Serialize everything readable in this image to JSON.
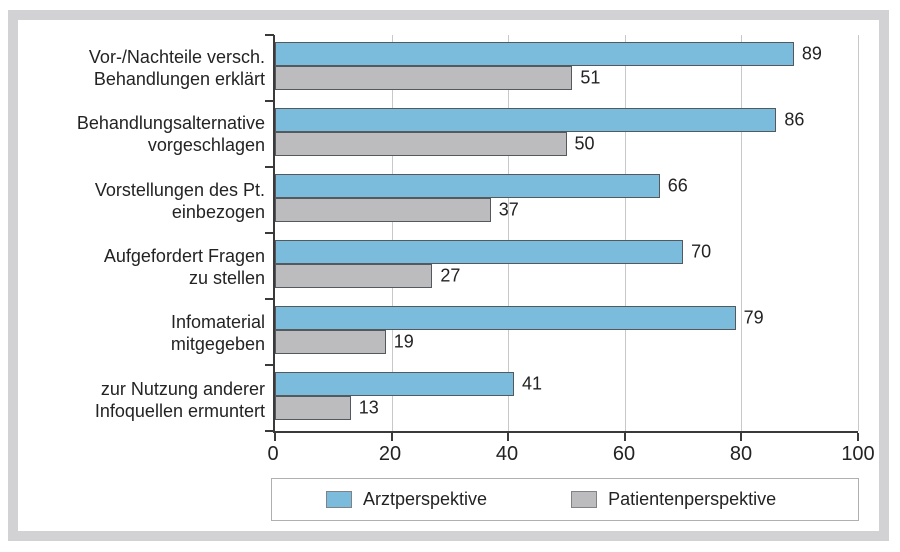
{
  "chart_data": {
    "type": "bar",
    "orientation": "horizontal",
    "categories": [
      {
        "lines": [
          "Vor-/Nachteile versch.",
          "Behandlungen erklärt"
        ]
      },
      {
        "lines": [
          "Behandlungsalternative",
          "vorgeschlagen"
        ]
      },
      {
        "lines": [
          "Vorstellungen des Pt.",
          "einbezogen"
        ]
      },
      {
        "lines": [
          "Aufgefordert Fragen",
          "zu stellen"
        ]
      },
      {
        "lines": [
          "Infomaterial",
          "mitgegeben"
        ]
      },
      {
        "lines": [
          "zur Nutzung anderer",
          "Infoquellen ermuntert"
        ]
      }
    ],
    "series": [
      {
        "name": "Arztperspektive",
        "color": "#7bbcdc",
        "values": [
          89,
          86,
          66,
          70,
          79,
          41
        ]
      },
      {
        "name": "Patientenperspektive",
        "color": "#bcbcbe",
        "values": [
          51,
          50,
          37,
          27,
          19,
          13
        ]
      }
    ],
    "xlim": [
      0,
      100
    ],
    "x_ticks": [
      0,
      20,
      40,
      60,
      80,
      100
    ],
    "grid": "vertical gridlines at each x tick",
    "legend_position": "bottom",
    "colors": {
      "bar_border": "#54595e",
      "gridline": "#c8c8c8",
      "axis": "#3a3a3a",
      "text": "#232323",
      "outer_frame": "#d2d2d5",
      "legend_border": "#b0b0b0"
    }
  }
}
